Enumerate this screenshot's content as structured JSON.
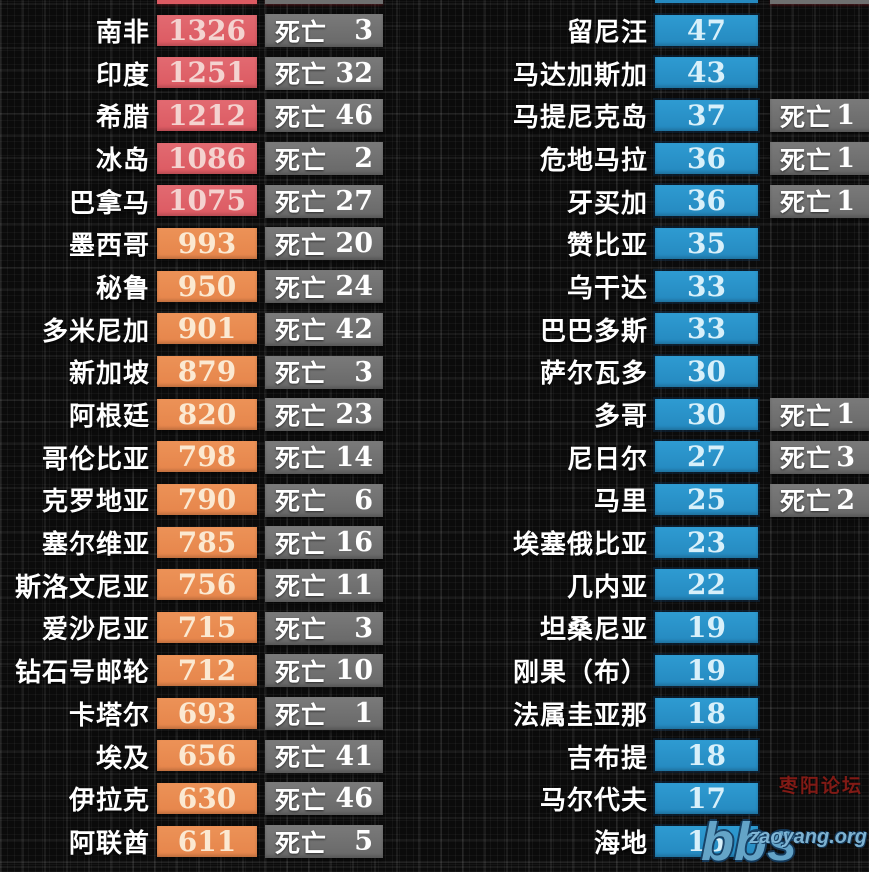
{
  "labels": {
    "death_label": "死亡"
  },
  "colors": {
    "high_case_badge": "#dc5a62",
    "mid_case_badge": "#e6854b",
    "low_case_badge": "#2589bf",
    "death_badge": "#6f6f6f",
    "name_text": "#ffffff"
  },
  "chart_data": {
    "type": "table",
    "description_visible": false,
    "left_column": [
      {
        "name": "南非",
        "value": 1326,
        "deaths": 3
      },
      {
        "name": "印度",
        "value": 1251,
        "deaths": 32
      },
      {
        "name": "希腊",
        "value": 1212,
        "deaths": 46
      },
      {
        "name": "冰岛",
        "value": 1086,
        "deaths": 2
      },
      {
        "name": "巴拿马",
        "value": 1075,
        "deaths": 27
      },
      {
        "name": "墨西哥",
        "value": 993,
        "deaths": 20
      },
      {
        "name": "秘鲁",
        "value": 950,
        "deaths": 24
      },
      {
        "name": "多米尼加",
        "value": 901,
        "deaths": 42
      },
      {
        "name": "新加坡",
        "value": 879,
        "deaths": 3
      },
      {
        "name": "阿根廷",
        "value": 820,
        "deaths": 23
      },
      {
        "name": "哥伦比亚",
        "value": 798,
        "deaths": 14
      },
      {
        "name": "克罗地亚",
        "value": 790,
        "deaths": 6
      },
      {
        "name": "塞尔维亚",
        "value": 785,
        "deaths": 16
      },
      {
        "name": "斯洛文尼亚",
        "value": 756,
        "deaths": 11
      },
      {
        "name": "爱沙尼亚",
        "value": 715,
        "deaths": 3
      },
      {
        "name": "钻石号邮轮",
        "value": 712,
        "deaths": 10
      },
      {
        "name": "卡塔尔",
        "value": 693,
        "deaths": 1
      },
      {
        "name": "埃及",
        "value": 656,
        "deaths": 41
      },
      {
        "name": "伊拉克",
        "value": 630,
        "deaths": 46
      },
      {
        "name": "阿联酋",
        "value": 611,
        "deaths": 5
      }
    ],
    "right_column": [
      {
        "name": "留尼汪",
        "value": 47,
        "deaths": null
      },
      {
        "name": "马达加斯加",
        "value": 43,
        "deaths": null
      },
      {
        "name": "马提尼克岛",
        "value": 37,
        "deaths": 1
      },
      {
        "name": "危地马拉",
        "value": 36,
        "deaths": 1
      },
      {
        "name": "牙买加",
        "value": 36,
        "deaths": 1
      },
      {
        "name": "赞比亚",
        "value": 35,
        "deaths": null
      },
      {
        "name": "乌干达",
        "value": 33,
        "deaths": null
      },
      {
        "name": "巴巴多斯",
        "value": 33,
        "deaths": null
      },
      {
        "name": "萨尔瓦多",
        "value": 30,
        "deaths": null
      },
      {
        "name": "多哥",
        "value": 30,
        "deaths": 1
      },
      {
        "name": "尼日尔",
        "value": 27,
        "deaths": 3
      },
      {
        "name": "马里",
        "value": 25,
        "deaths": 2
      },
      {
        "name": "埃塞俄比亚",
        "value": 23,
        "deaths": null
      },
      {
        "name": "几内亚",
        "value": 22,
        "deaths": null
      },
      {
        "name": "坦桑尼亚",
        "value": 19,
        "deaths": null
      },
      {
        "name": "刚果（布）",
        "value": 19,
        "deaths": null
      },
      {
        "name": "法属圭亚那",
        "value": 18,
        "deaths": null
      },
      {
        "name": "吉布提",
        "value": 18,
        "deaths": null
      },
      {
        "name": "马尔代夫",
        "value": 17,
        "deaths": null
      },
      {
        "name": "海地",
        "value": 15,
        "deaths": null
      }
    ]
  },
  "watermark": {
    "forum_cn": "枣阳论坛",
    "bbs": "bbs",
    "site": "zaoyang.org"
  }
}
